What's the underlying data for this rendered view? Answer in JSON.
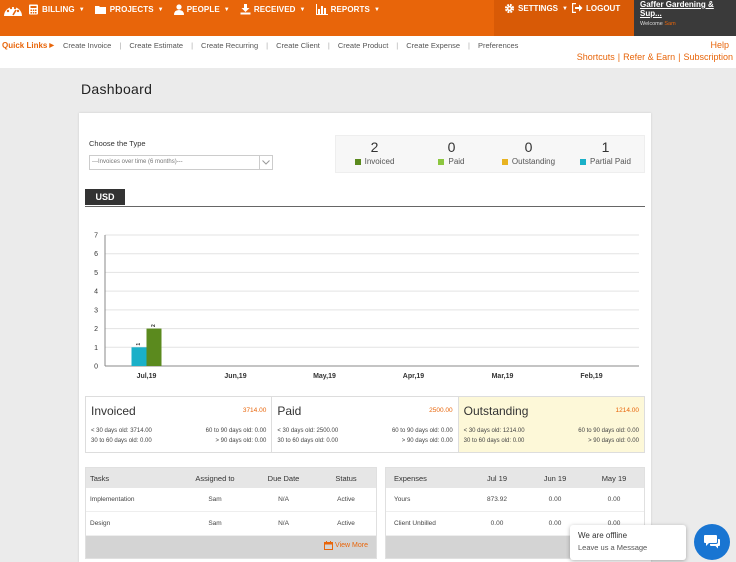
{
  "nav": {
    "billing": "BILLING",
    "projects": "PROJECTS",
    "people": "PEOPLE",
    "received": "RECEIVED",
    "reports": "REPORTS",
    "settings": "SETTINGS",
    "logout": "LOGOUT"
  },
  "account": {
    "company": "Gaffer Gardening & Sup...",
    "welcome_prefix": "Welcome",
    "user": "Sam"
  },
  "quick_links": {
    "title": "Quick Links",
    "items": [
      "Create Invoice",
      "Create Estimate",
      "Create Recurring",
      "Create Client",
      "Create Product",
      "Create Expense",
      "Preferences"
    ],
    "help": "Help",
    "right_links": [
      "Shortcuts",
      "Refer & Earn",
      "Subscription"
    ]
  },
  "page_title": "Dashboard",
  "type_selector": {
    "label": "Choose the Type",
    "value": "---Invoices over time (6 months)---"
  },
  "counts": [
    {
      "value": "2",
      "label": "Invoiced",
      "color": "#5b8a1e"
    },
    {
      "value": "0",
      "label": "Paid",
      "color": "#8cc63f"
    },
    {
      "value": "0",
      "label": "Outstanding",
      "color": "#e8b321"
    },
    {
      "value": "1",
      "label": "Partial Paid",
      "color": "#1ab0c8"
    }
  ],
  "currency_tab": "USD",
  "chart_data": {
    "type": "bar",
    "categories": [
      "Jul,19",
      "Jun,19",
      "May,19",
      "Apr,19",
      "Mar,19",
      "Feb,19"
    ],
    "series": [
      {
        "name": "Partial Paid",
        "color": "#1ab0c8",
        "values": [
          1,
          0,
          0,
          0,
          0,
          0
        ]
      },
      {
        "name": "Invoiced",
        "color": "#5b8a1e",
        "values": [
          2,
          0,
          0,
          0,
          0,
          0
        ]
      }
    ],
    "ylim": [
      0,
      7
    ],
    "yticks": [
      0,
      1,
      2,
      3,
      4,
      5,
      6,
      7
    ],
    "grid": true
  },
  "summary": [
    {
      "title": "Invoiced",
      "amount": "3714.00",
      "lt30": "< 30 days old: 3714.00",
      "d30_60": "30 to 60 days old: 0.00",
      "d60_90": "60 to 90 days old: 0.00",
      "gt90": "> 90 days old: 0.00"
    },
    {
      "title": "Paid",
      "amount": "2500.00",
      "lt30": "< 30 days old: 2500.00",
      "d30_60": "30 to 60 days old: 0.00",
      "d60_90": "60 to 90 days old: 0.00",
      "gt90": "> 90 days old: 0.00"
    },
    {
      "title": "Outstanding",
      "amount": "1214.00",
      "lt30": "< 30 days old: 1214.00",
      "d30_60": "30 to 60 days old: 0.00",
      "d60_90": "60 to 90 days old: 0.00",
      "gt90": "> 90 days old: 0.00"
    }
  ],
  "tasks": {
    "headers": [
      "Tasks",
      "Assigned to",
      "Due Date",
      "Status"
    ],
    "rows": [
      [
        "Implementation",
        "Sam",
        "N/A",
        "Active"
      ],
      [
        "Design",
        "Sam",
        "N/A",
        "Active"
      ]
    ],
    "view_more": "View More"
  },
  "expenses": {
    "headers": [
      "Expenses",
      "Jul 19",
      "Jun 19",
      "May 19"
    ],
    "rows": [
      [
        "Yours",
        "873.92",
        "0.00",
        "0.00"
      ],
      [
        "Client Unbilled",
        "0.00",
        "0.00",
        "0.00"
      ]
    ]
  },
  "chat": {
    "status": "We are offline",
    "action": "Leave us a Message"
  },
  "brand_color": "#e8650a"
}
